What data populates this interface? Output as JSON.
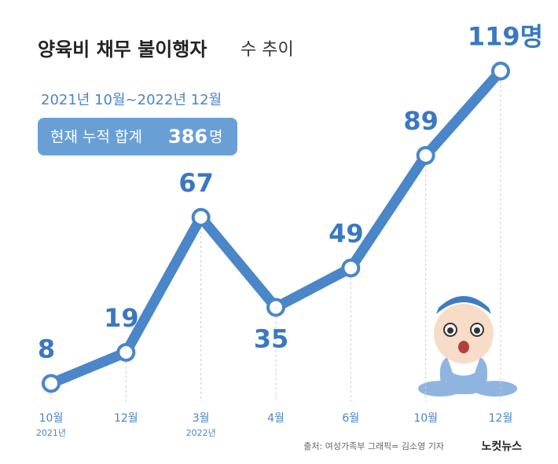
{
  "chart_data": {
    "type": "line",
    "title": "양육비 채무 불이행자",
    "title_suffix": "수 추이",
    "subtitle": "2021년 10월~2022년 12월",
    "summary": {
      "text": "현재 누적 합계",
      "value": 386,
      "unit": "명"
    },
    "categories": [
      "10월",
      "12월",
      "3월",
      "4월",
      "6월",
      "10월",
      "12월"
    ],
    "year_labels": [
      "2021년",
      null,
      "2022년",
      null,
      null,
      null,
      null
    ],
    "values": [
      8,
      19,
      67,
      35,
      49,
      89,
      119
    ],
    "value_labels": [
      "8",
      "19",
      "67",
      "35",
      "49",
      "89",
      "119명"
    ],
    "color": "#4a86c8",
    "ylim": [
      0,
      125
    ],
    "source": "출처: 여성가족부   그래픽= 김소영 기자",
    "logo": "노컷뉴스"
  }
}
